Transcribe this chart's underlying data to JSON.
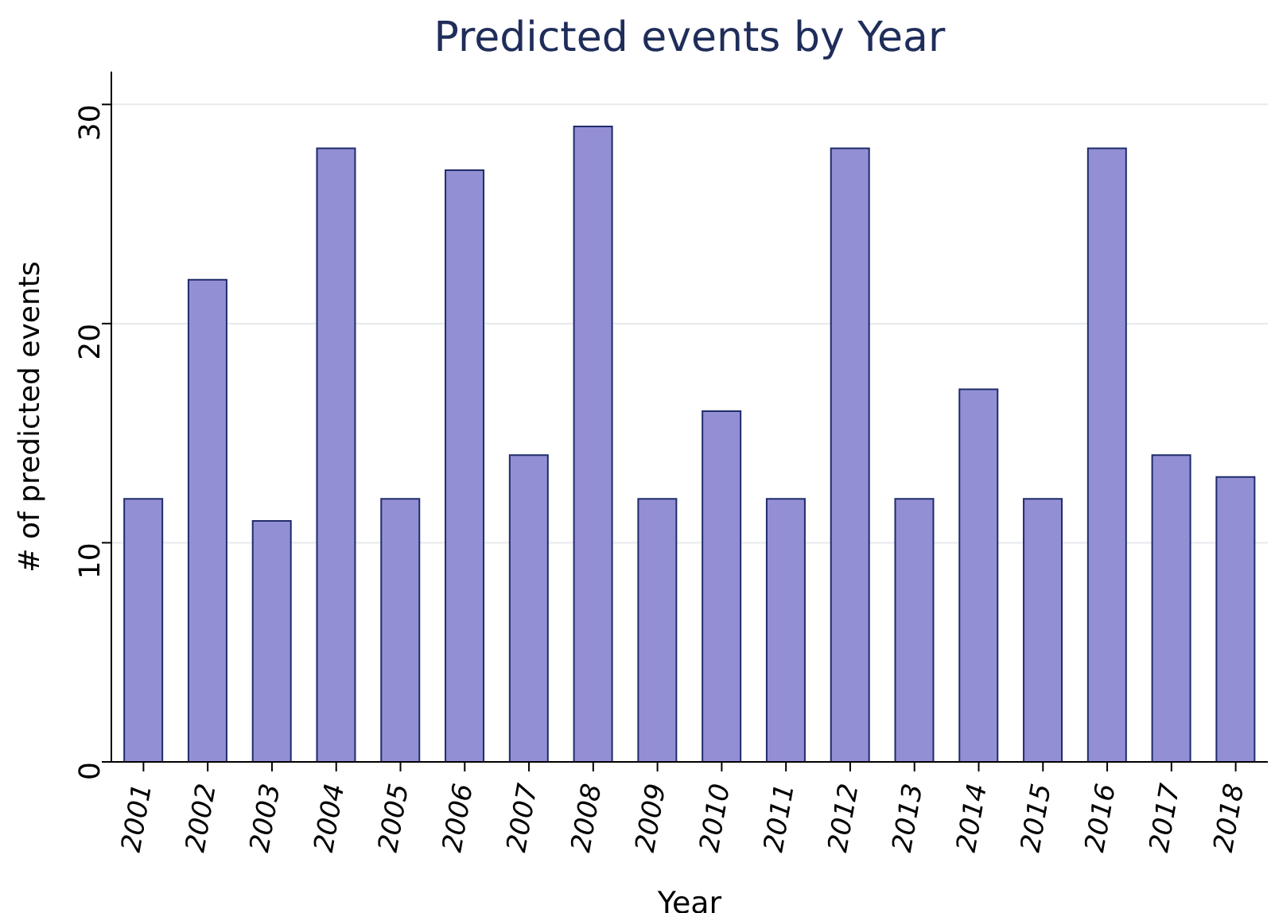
{
  "chart_data": {
    "type": "bar",
    "title": "Predicted events by Year",
    "xlabel": "Year",
    "ylabel": "# of predicted events",
    "categories": [
      "2001",
      "2002",
      "2003",
      "2004",
      "2005",
      "2006",
      "2007",
      "2008",
      "2009",
      "2010",
      "2011",
      "2012",
      "2013",
      "2014",
      "2015",
      "2016",
      "2017",
      "2018"
    ],
    "values": [
      12,
      22,
      11,
      28,
      12,
      27,
      14,
      29,
      12,
      16,
      12,
      28,
      12,
      17,
      12,
      28,
      14,
      13
    ],
    "color": "#938fd5",
    "ylim": [
      0,
      31.5
    ],
    "yticks": [
      0,
      10,
      20,
      30
    ],
    "grid": "y"
  }
}
